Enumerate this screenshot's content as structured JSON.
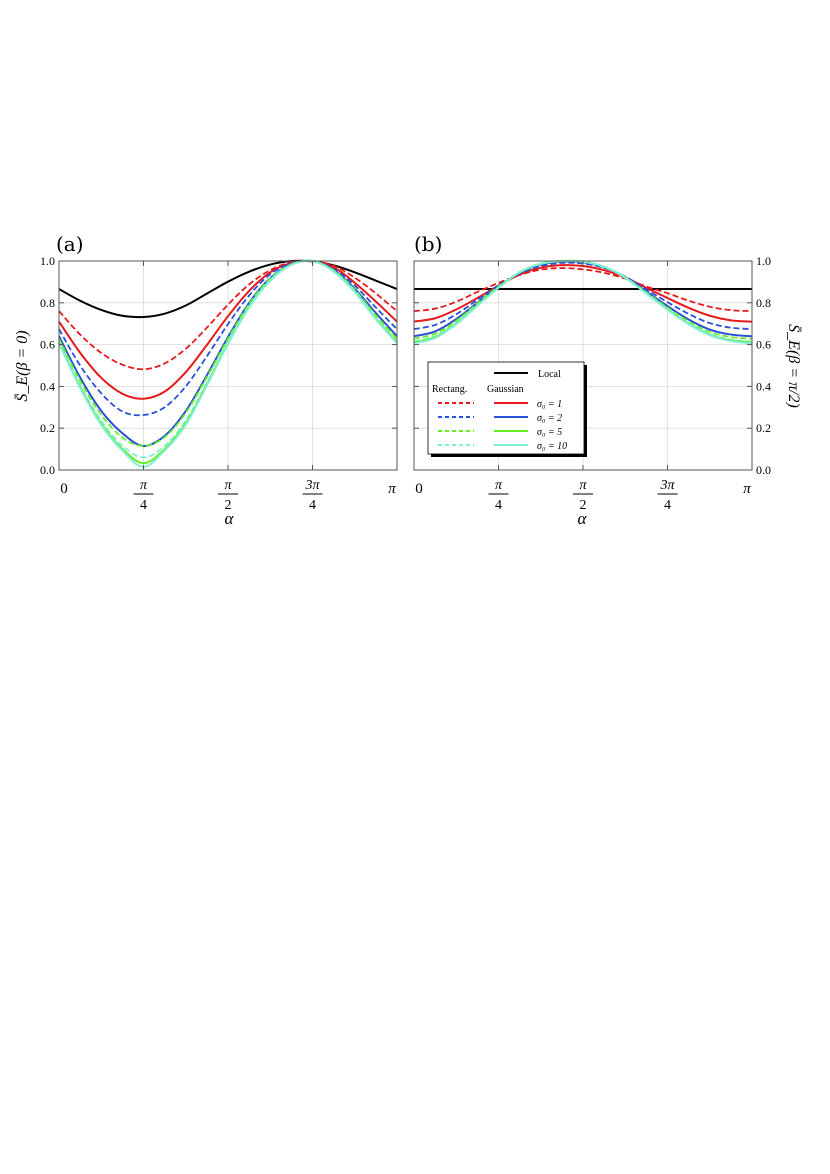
{
  "figure": {
    "panels": [
      {
        "label": "(a)",
        "ylabel": "S̄_E(β = 0)",
        "xlabel": "α"
      },
      {
        "label": "(b)",
        "ylabel": "S̄_E(β = π/2)",
        "xlabel": "α"
      }
    ],
    "legend": {
      "local_label": "Local",
      "header_rect": "Rectang.",
      "header_gauss": "Gaussian",
      "rows": [
        "σ₀ = 1",
        "σ₀ = 2",
        "σ₀ = 5",
        "σ₀ = 10"
      ]
    }
  },
  "colors": {
    "local": "#000000",
    "sigma1": "#e8191a",
    "sigma2": "#2a4fd8",
    "sigma5": "#66ee22",
    "sigma10": "#7ff0d8",
    "grid": "#d9d9d9"
  },
  "chart_data": [
    {
      "type": "line",
      "title": "(a)",
      "xlabel": "α",
      "ylabel": "S̄_E(β = 0)",
      "xlim": [
        0,
        3.14159
      ],
      "ylim": [
        0,
        1
      ],
      "x_ticks": [
        "0",
        "π/4",
        "π/2",
        "3π/4",
        "π"
      ],
      "y_ticks": [
        "0.0",
        "0.2",
        "0.4",
        "0.6",
        "0.8",
        "1.0"
      ],
      "grid": true,
      "x": [
        "0",
        "π/16",
        "π/8",
        "3π/16",
        "π/4",
        "5π/16",
        "3π/8",
        "7π/16",
        "π/2",
        "9π/16",
        "5π/8",
        "11π/16",
        "3π/4",
        "13π/16",
        "7π/8",
        "15π/16",
        "π"
      ],
      "series": [
        {
          "name": "Local",
          "style": "solid",
          "color": "#000000",
          "values": [
            0.866,
            0.81,
            0.766,
            0.738,
            0.732,
            0.748,
            0.787,
            0.844,
            0.901,
            0.949,
            0.983,
            1.0,
            0.998,
            0.979,
            0.946,
            0.906,
            0.866
          ]
        },
        {
          "name": "Rectang. σ₀ = 1",
          "style": "dashed",
          "color": "#e8191a",
          "values": [
            0.76,
            0.648,
            0.56,
            0.504,
            0.482,
            0.51,
            0.58,
            0.681,
            0.791,
            0.888,
            0.956,
            0.994,
            1.0,
            0.977,
            0.92,
            0.845,
            0.76
          ]
        },
        {
          "name": "Gaussian σ₀ = 1",
          "style": "solid",
          "color": "#e8191a",
          "values": [
            0.71,
            0.561,
            0.441,
            0.365,
            0.341,
            0.375,
            0.468,
            0.598,
            0.736,
            0.857,
            0.946,
            0.99,
            1.0,
            0.97,
            0.896,
            0.806,
            0.71
          ]
        },
        {
          "name": "Rectang. σ₀ = 2",
          "style": "dashed",
          "color": "#2a4fd8",
          "values": [
            0.674,
            0.5,
            0.367,
            0.28,
            0.263,
            0.3,
            0.4,
            0.544,
            0.698,
            0.835,
            0.937,
            0.988,
            1.0,
            0.962,
            0.883,
            0.777,
            0.674
          ]
        },
        {
          "name": "Gaussian σ₀ = 2",
          "style": "solid",
          "color": "#2a4fd8",
          "values": [
            0.64,
            0.443,
            0.283,
            0.176,
            0.115,
            0.163,
            0.282,
            0.453,
            0.636,
            0.8,
            0.918,
            0.985,
            1.0,
            0.957,
            0.867,
            0.751,
            0.64
          ]
        },
        {
          "name": "Rectang. σ₀ = 5",
          "style": "dashed",
          "color": "#66ee22",
          "values": [
            0.628,
            0.427,
            0.264,
            0.155,
            0.115,
            0.157,
            0.273,
            0.444,
            0.628,
            0.795,
            0.916,
            0.984,
            1.0,
            0.955,
            0.863,
            0.74,
            0.628
          ]
        },
        {
          "name": "Rectang. σ₀ = 10",
          "style": "dashed",
          "color": "#7ff0d8",
          "values": [
            0.615,
            0.407,
            0.235,
            0.117,
            0.06,
            0.115,
            0.237,
            0.418,
            0.612,
            0.784,
            0.91,
            0.983,
            1.0,
            0.952,
            0.856,
            0.728,
            0.615
          ]
        },
        {
          "name": "Gaussian σ₀ = 5",
          "style": "solid",
          "color": "#66ee22",
          "values": [
            0.61,
            0.398,
            0.222,
            0.101,
            0.033,
            0.1,
            0.225,
            0.41,
            0.606,
            0.78,
            0.907,
            0.982,
            1.0,
            0.951,
            0.853,
            0.724,
            0.61
          ]
        },
        {
          "name": "Gaussian σ₀ = 10",
          "style": "solid",
          "color": "#7ff0d8",
          "values": [
            0.606,
            0.393,
            0.215,
            0.093,
            0.015,
            0.093,
            0.217,
            0.404,
            0.603,
            0.778,
            0.906,
            0.982,
            1.0,
            0.95,
            0.852,
            0.721,
            0.606
          ]
        }
      ]
    },
    {
      "type": "line",
      "title": "(b)",
      "xlabel": "α",
      "ylabel": "S̄_E(β = π/2)",
      "xlim": [
        0,
        3.14159
      ],
      "ylim": [
        0,
        1
      ],
      "x_ticks": [
        "0",
        "π/4",
        "π/2",
        "3π/4",
        "π"
      ],
      "y_ticks": [
        "0.0",
        "0.2",
        "0.4",
        "0.6",
        "0.8",
        "1.0"
      ],
      "grid": true,
      "legend_position": "lower-left",
      "x": [
        "0",
        "π/16",
        "π/8",
        "3π/16",
        "π/4",
        "5π/16",
        "3π/8",
        "7π/16",
        "π/2",
        "9π/16",
        "5π/8",
        "11π/16",
        "3π/4",
        "13π/16",
        "7π/8",
        "15π/16",
        "π"
      ],
      "series": [
        {
          "name": "Local",
          "style": "solid",
          "color": "#000000",
          "values": [
            0.866,
            0.866,
            0.866,
            0.866,
            0.866,
            0.866,
            0.866,
            0.866,
            0.866,
            0.866,
            0.866,
            0.866,
            0.866,
            0.866,
            0.866,
            0.866,
            0.866
          ]
        },
        {
          "name": "Rectang. σ₀ = 1",
          "style": "dashed",
          "color": "#e8191a",
          "values": [
            0.76,
            0.772,
            0.805,
            0.852,
            0.895,
            0.933,
            0.959,
            0.966,
            0.96,
            0.943,
            0.916,
            0.878,
            0.846,
            0.81,
            0.781,
            0.765,
            0.76
          ]
        },
        {
          "name": "Gaussian σ₀ = 1",
          "style": "solid",
          "color": "#e8191a",
          "values": [
            0.71,
            0.726,
            0.768,
            0.823,
            0.882,
            0.935,
            0.968,
            0.98,
            0.976,
            0.956,
            0.921,
            0.871,
            0.823,
            0.776,
            0.738,
            0.716,
            0.71
          ]
        },
        {
          "name": "Rectang. σ₀ = 2",
          "style": "dashed",
          "color": "#2a4fd8",
          "values": [
            0.674,
            0.694,
            0.745,
            0.814,
            0.883,
            0.94,
            0.976,
            0.991,
            0.988,
            0.967,
            0.925,
            0.864,
            0.803,
            0.747,
            0.703,
            0.681,
            0.674
          ]
        },
        {
          "name": "Gaussian σ₀ = 2",
          "style": "solid",
          "color": "#2a4fd8",
          "values": [
            0.64,
            0.663,
            0.722,
            0.8,
            0.878,
            0.943,
            0.983,
            0.997,
            0.994,
            0.97,
            0.923,
            0.854,
            0.784,
            0.72,
            0.672,
            0.648,
            0.64
          ]
        },
        {
          "name": "Rectang. σ₀ = 5",
          "style": "dashed",
          "color": "#66ee22",
          "values": [
            0.628,
            0.652,
            0.714,
            0.797,
            0.878,
            0.945,
            0.985,
            0.999,
            0.996,
            0.971,
            0.922,
            0.85,
            0.777,
            0.711,
            0.661,
            0.636,
            0.628
          ]
        },
        {
          "name": "Rectang. σ₀ = 10",
          "style": "dashed",
          "color": "#7ff0d8",
          "values": [
            0.615,
            0.64,
            0.704,
            0.79,
            0.874,
            0.945,
            0.986,
            1.0,
            0.997,
            0.972,
            0.921,
            0.847,
            0.771,
            0.703,
            0.651,
            0.624,
            0.615
          ]
        },
        {
          "name": "Gaussian σ₀ = 5",
          "style": "solid",
          "color": "#66ee22",
          "values": [
            0.61,
            0.636,
            0.701,
            0.788,
            0.873,
            0.946,
            0.987,
            1.0,
            0.997,
            0.972,
            0.92,
            0.845,
            0.769,
            0.7,
            0.647,
            0.62,
            0.61
          ]
        },
        {
          "name": "Gaussian σ₀ = 10",
          "style": "solid",
          "color": "#7ff0d8",
          "values": [
            0.606,
            0.632,
            0.698,
            0.786,
            0.872,
            0.946,
            0.987,
            1.0,
            0.997,
            0.972,
            0.92,
            0.844,
            0.767,
            0.698,
            0.645,
            0.617,
            0.606
          ]
        }
      ]
    }
  ]
}
